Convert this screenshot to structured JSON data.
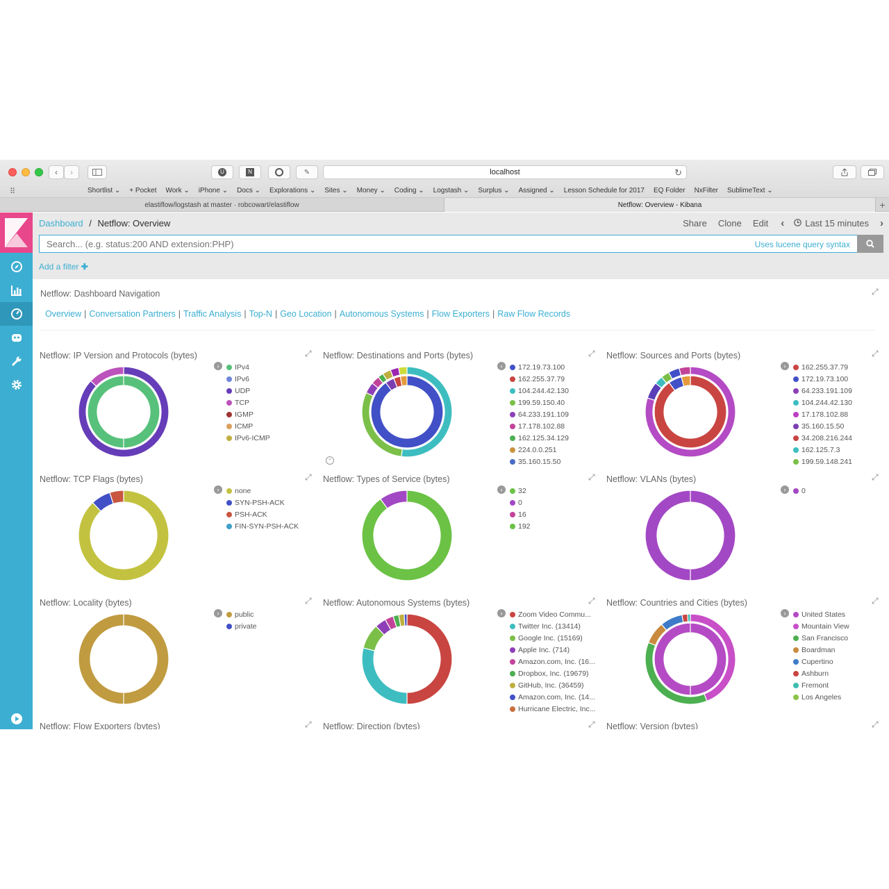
{
  "browser": {
    "url": "localhost",
    "bookmarks": [
      "Shortlist ⌄",
      "+ Pocket",
      "Work ⌄",
      "iPhone ⌄",
      "Docs ⌄",
      "Explorations ⌄",
      "Sites ⌄",
      "Money ⌄",
      "Coding ⌄",
      "Logstash ⌄",
      "Surplus ⌄",
      "Assigned ⌄",
      "Lesson Schedule for 2017",
      "EQ Folder",
      "NxFilter",
      "SublimeText ⌄"
    ],
    "tabs": [
      "elastiflow/logstash at master · robcowart/elastiflow",
      "Netflow: Overview - Kibana"
    ]
  },
  "kibana": {
    "breadcrumb_root": "Dashboard",
    "breadcrumb_sep": "/",
    "page_title": "Netflow: Overview",
    "menu": {
      "share": "Share",
      "clone": "Clone",
      "edit": "Edit",
      "time": "Last 15 minutes"
    },
    "search_placeholder": "Search... (e.g. status:200 AND extension:PHP)",
    "lucene": "Uses lucene query syntax",
    "add_filter": "Add a filter"
  },
  "navigation": {
    "title": "Netflow: Dashboard Navigation",
    "links": [
      "Overview",
      "Conversation Partners",
      "Traffic Analysis",
      "Top-N",
      "Geo Location",
      "Autonomous Systems",
      "Flow Exporters",
      "Raw Flow Records"
    ]
  },
  "panels": [
    {
      "title": "Netflow: IP Version and Protocols (bytes)",
      "legend": [
        {
          "label": "IPv4",
          "color": "#57c17b"
        },
        {
          "label": "IPv6",
          "color": "#6f87d8"
        },
        {
          "label": "UDP",
          "color": "#663db8"
        },
        {
          "label": "TCP",
          "color": "#bc52bc"
        },
        {
          "label": "IGMP",
          "color": "#9e3533"
        },
        {
          "label": "ICMP",
          "color": "#daa05d"
        },
        {
          "label": "IPv6-ICMP",
          "color": "#bfaf40"
        }
      ],
      "rings": [
        {
          "slices": [
            {
              "value": 100,
              "color": "#57c17b"
            }
          ]
        },
        {
          "slices": [
            {
              "value": 87,
              "color": "#663db8"
            },
            {
              "value": 13,
              "color": "#bc52bc"
            }
          ]
        }
      ]
    },
    {
      "title": "Netflow: Destinations and Ports (bytes)",
      "legend": [
        {
          "label": "172.19.73.100",
          "color": "#4150c6"
        },
        {
          "label": "162.255.37.79",
          "color": "#c94541"
        },
        {
          "label": "104.244.42.130",
          "color": "#3ebdc0"
        },
        {
          "label": "199.59.150.40",
          "color": "#7bbf48"
        },
        {
          "label": "64.233.191.109",
          "color": "#8e3fb8"
        },
        {
          "label": "17.178.102.88",
          "color": "#c2449a"
        },
        {
          "label": "162.125.34.129",
          "color": "#4caf50"
        },
        {
          "label": "224.0.0.251",
          "color": "#c9923e"
        },
        {
          "label": "35.160.15.50",
          "color": "#4a6bc4"
        }
      ],
      "rings": [
        {
          "slices": [
            {
              "value": 90,
              "color": "#4150c6"
            },
            {
              "value": 4,
              "color": "#7b3fb0"
            },
            {
              "value": 3,
              "color": "#c94541"
            },
            {
              "value": 3,
              "color": "#e59a3b"
            }
          ]
        },
        {
          "slices": [
            {
              "value": 52,
              "color": "#3ebdc0"
            },
            {
              "value": 30,
              "color": "#7bbf48"
            },
            {
              "value": 4,
              "color": "#8e3fb8"
            },
            {
              "value": 3,
              "color": "#c2449a"
            },
            {
              "value": 2,
              "color": "#4caf50"
            },
            {
              "value": 3,
              "color": "#bfaf40"
            },
            {
              "value": 3,
              "color": "#9c27b0"
            },
            {
              "value": 3,
              "color": "#cddc39"
            }
          ]
        }
      ]
    },
    {
      "title": "Netflow: Sources and Ports (bytes)",
      "legend": [
        {
          "label": "162.255.37.79",
          "color": "#c94541"
        },
        {
          "label": "172.19.73.100",
          "color": "#4150c6"
        },
        {
          "label": "64.233.191.109",
          "color": "#8e3fb8"
        },
        {
          "label": "104.244.42.130",
          "color": "#3ebdc0"
        },
        {
          "label": "17.178.102.88",
          "color": "#bc3fc4"
        },
        {
          "label": "35.160.15.50",
          "color": "#7b3fb0"
        },
        {
          "label": "34.208.216.244",
          "color": "#c94541"
        },
        {
          "label": "162.125.7.3",
          "color": "#3ebdc0"
        },
        {
          "label": "199.59.148.241",
          "color": "#7bbf48"
        }
      ],
      "rings": [
        {
          "slices": [
            {
              "value": 90,
              "color": "#c94541"
            },
            {
              "value": 6,
              "color": "#4150c6"
            },
            {
              "value": 4,
              "color": "#e59a3b"
            }
          ]
        },
        {
          "slices": [
            {
              "value": 80,
              "color": "#b44bc4"
            },
            {
              "value": 6,
              "color": "#5a3fb8"
            },
            {
              "value": 3,
              "color": "#3ebdc0"
            },
            {
              "value": 3,
              "color": "#7bbf48"
            },
            {
              "value": 4,
              "color": "#4150c6"
            },
            {
              "value": 4,
              "color": "#c2449a"
            }
          ]
        }
      ]
    },
    {
      "title": "Netflow: TCP Flags (bytes)",
      "legend": [
        {
          "label": "none",
          "color": "#c3c240"
        },
        {
          "label": "SYN-PSH-ACK",
          "color": "#4150c6"
        },
        {
          "label": "PSH-ACK",
          "color": "#c9563f"
        },
        {
          "label": "FIN-SYN-PSH-ACK",
          "color": "#3ea0c9"
        }
      ],
      "rings": [
        {
          "slices": [
            {
              "value": 88,
              "color": "#c3c240"
            },
            {
              "value": 7,
              "color": "#4150c6"
            },
            {
              "value": 5,
              "color": "#c9563f"
            }
          ]
        }
      ]
    },
    {
      "title": "Netflow: Types of Service (bytes)",
      "legend": [
        {
          "label": "32",
          "color": "#6bc245"
        },
        {
          "label": "0",
          "color": "#a348c4"
        },
        {
          "label": "16",
          "color": "#c2449a"
        },
        {
          "label": "192",
          "color": "#6bc245"
        }
      ],
      "rings": [
        {
          "slices": [
            {
              "value": 90,
              "color": "#6bc245"
            },
            {
              "value": 10,
              "color": "#a348c4"
            }
          ]
        }
      ]
    },
    {
      "title": "Netflow: VLANs (bytes)",
      "legend": [
        {
          "label": "0",
          "color": "#a348c4"
        }
      ],
      "rings": [
        {
          "slices": [
            {
              "value": 100,
              "color": "#a348c4"
            }
          ]
        }
      ]
    },
    {
      "title": "Netflow: Locality (bytes)",
      "legend": [
        {
          "label": "public",
          "color": "#c09b40"
        },
        {
          "label": "private",
          "color": "#4150c6"
        }
      ],
      "rings": [
        {
          "slices": [
            {
              "value": 100,
              "color": "#c09b40"
            }
          ]
        }
      ]
    },
    {
      "title": "Netflow: Autonomous Systems (bytes)",
      "legend": [
        {
          "label": "Zoom Video Commu...",
          "color": "#c94541"
        },
        {
          "label": "Twitter Inc. (13414)",
          "color": "#3ebdc0"
        },
        {
          "label": "Google Inc. (15169)",
          "color": "#7bbf48"
        },
        {
          "label": "Apple Inc. (714)",
          "color": "#8e3fb8"
        },
        {
          "label": "Amazon.com, Inc. (16...",
          "color": "#c2449a"
        },
        {
          "label": "Dropbox, Inc. (19679)",
          "color": "#4caf50"
        },
        {
          "label": "GitHub, Inc. (36459)",
          "color": "#bfaf40"
        },
        {
          "label": "Amazon.com, Inc. (14...",
          "color": "#4150c6"
        },
        {
          "label": "Hurricane Electric, Inc...",
          "color": "#c9703e"
        }
      ],
      "rings": [
        {
          "slices": [
            {
              "value": 50,
              "color": "#c94541"
            },
            {
              "value": 29,
              "color": "#3ebdc0"
            },
            {
              "value": 9,
              "color": "#7bbf48"
            },
            {
              "value": 4,
              "color": "#8e3fb8"
            },
            {
              "value": 3,
              "color": "#c2449a"
            },
            {
              "value": 2,
              "color": "#4caf50"
            },
            {
              "value": 2,
              "color": "#bfaf40"
            },
            {
              "value": 1,
              "color": "#4150c6"
            }
          ]
        }
      ]
    },
    {
      "title": "Netflow: Countries and Cities (bytes)",
      "legend": [
        {
          "label": "United States",
          "color": "#b44bc4"
        },
        {
          "label": "Mountain View",
          "color": "#c84fc8"
        },
        {
          "label": "San Francisco",
          "color": "#4caf50"
        },
        {
          "label": "Boardman",
          "color": "#c98a3e"
        },
        {
          "label": "Cupertino",
          "color": "#3e7bc9"
        },
        {
          "label": "Ashburn",
          "color": "#c94541"
        },
        {
          "label": "Fremont",
          "color": "#3ebdb0"
        },
        {
          "label": "Los Angeles",
          "color": "#8bc34a"
        }
      ],
      "rings": [
        {
          "slices": [
            {
              "value": 100,
              "color": "#b44bc4"
            }
          ]
        },
        {
          "slices": [
            {
              "value": 44,
              "color": "#c84fc8"
            },
            {
              "value": 37,
              "color": "#4caf50"
            },
            {
              "value": 8,
              "color": "#c98a3e"
            },
            {
              "value": 8,
              "color": "#3e7bc9"
            },
            {
              "value": 2,
              "color": "#c94541"
            },
            {
              "value": 1,
              "color": "#3ebdb0"
            }
          ]
        }
      ]
    },
    {
      "title": "Netflow: Flow Exporters (bytes)",
      "legend": [],
      "rings": []
    },
    {
      "title": "Netflow: Direction (bytes)",
      "legend": [],
      "rings": []
    },
    {
      "title": "Netflow: Version (bytes)",
      "legend": [],
      "rings": []
    }
  ]
}
